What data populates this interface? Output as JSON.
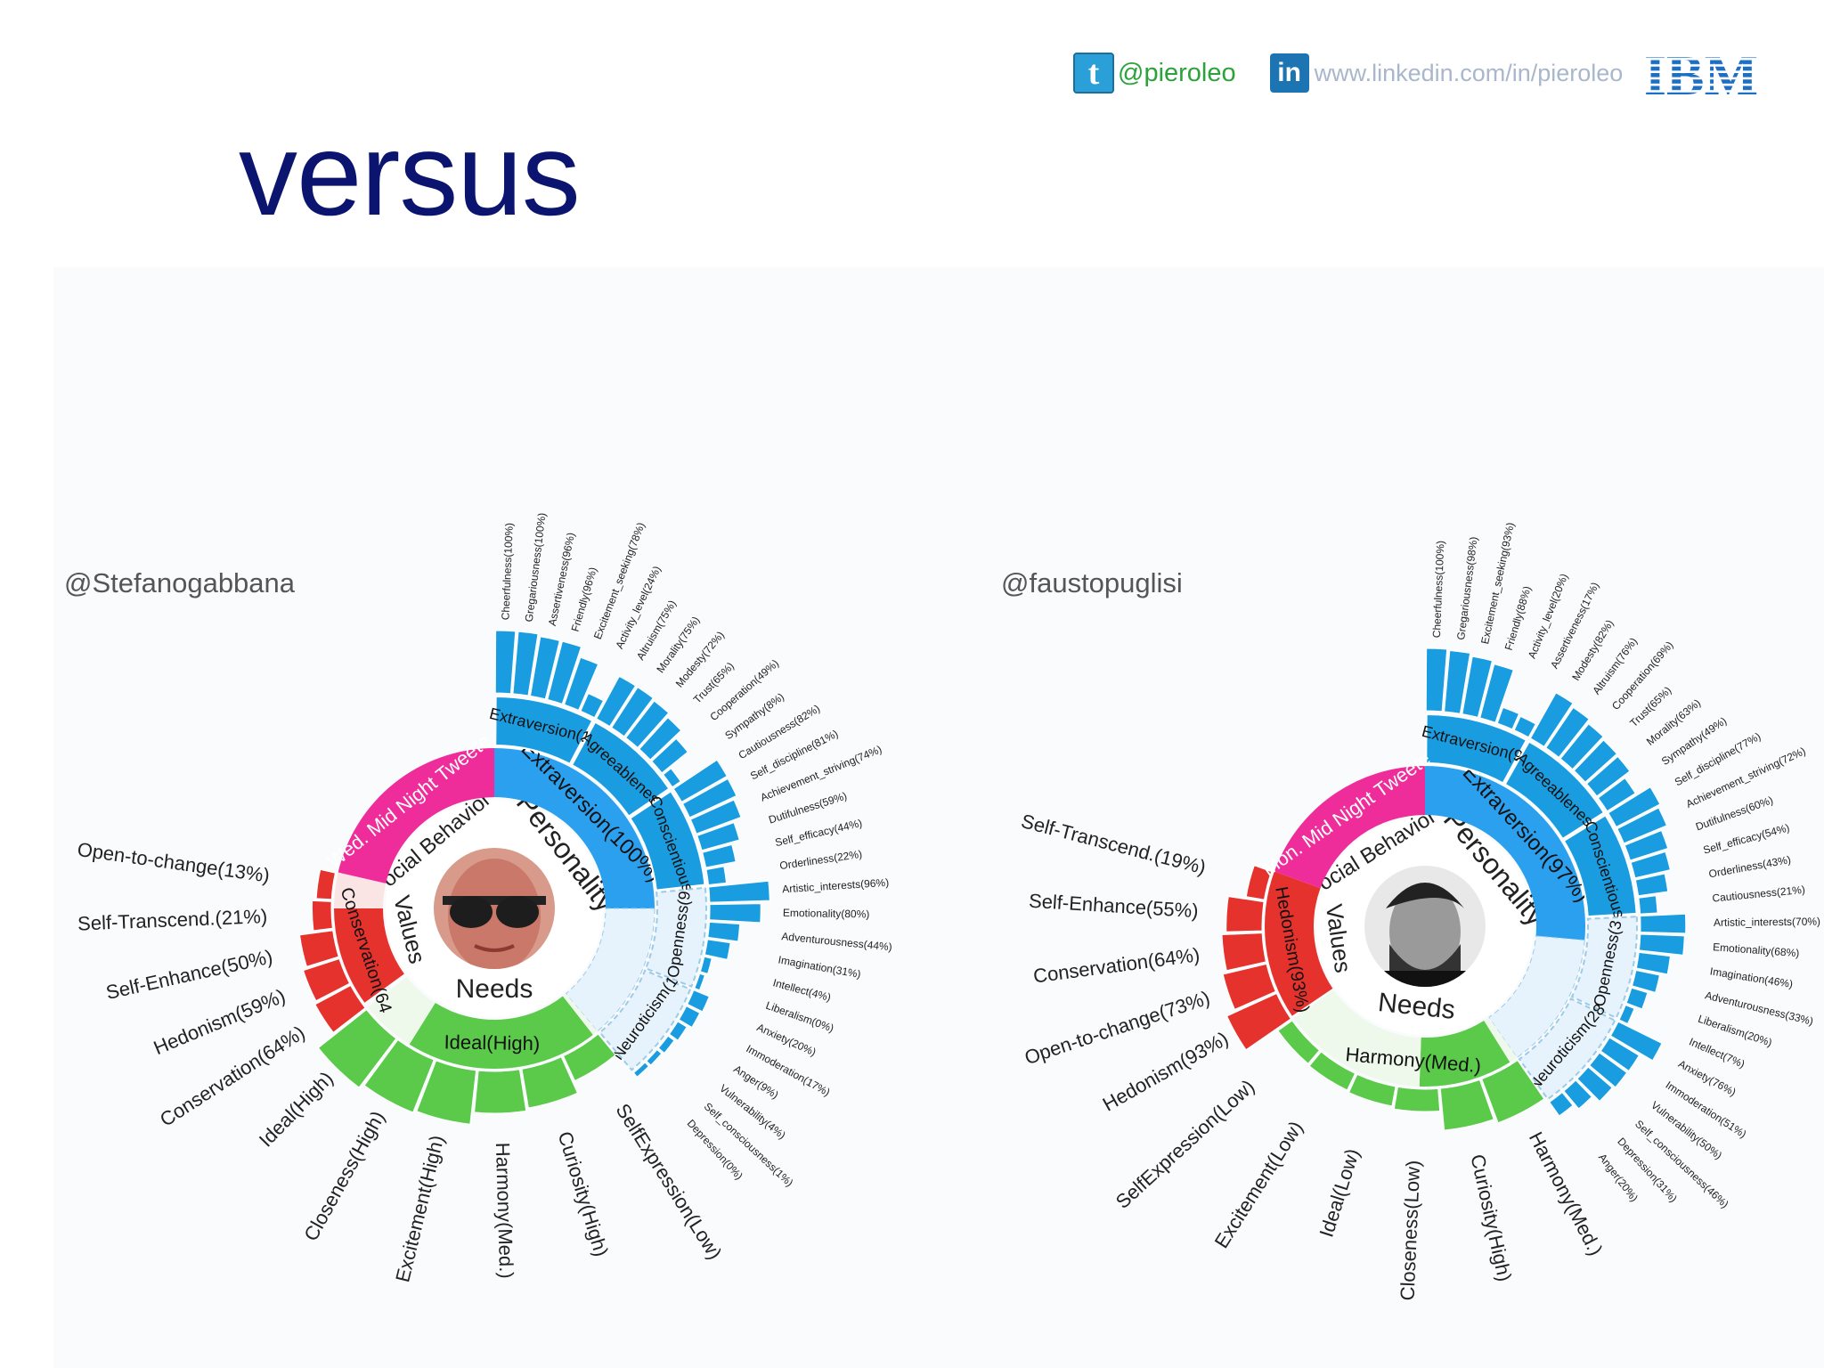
{
  "header": {
    "twitter_glyph": "t",
    "twitter_handle": "@pieroleo",
    "linkedin_glyph": "in",
    "linkedin_url": "www.linkedin.com/in/pieroleo",
    "ibm_logo_text": "IBM"
  },
  "title": "versus",
  "colors": {
    "personality": "#1a9de0",
    "personality_inner": "#2aa0ef",
    "personality_light": "#e6f3fc",
    "values": "#e5322d",
    "values_light": "#fbe5e4",
    "needs": "#5bca4a",
    "needs_light": "#eef9ec",
    "social": "#ee2d9a",
    "title": "#0b1570"
  },
  "chart_data": [
    {
      "type": "sunburst",
      "handle": "@Stefanogabbana",
      "avatar": "person-with-aviator-sunglasses",
      "center_labels": {
        "personality": "Personality",
        "values": "Values",
        "needs": "Needs",
        "social": "ocial Behavior"
      },
      "social_label": "Wed. Mid Night Tweete",
      "personality": {
        "main_label": "Extraversion(100%)",
        "groups": [
          {
            "name": "Extraversion(1",
            "shade": "dark",
            "facets": [
              [
                "Cheerfulness(100%)",
                100
              ],
              [
                "Gregariousness(100%)",
                100
              ],
              [
                "Assertiveness(96%)",
                96
              ],
              [
                "Friendly(96%)",
                96
              ],
              [
                "Excitement_seeking(78%)",
                78
              ],
              [
                "Activity_level(24%)",
                24
              ]
            ]
          },
          {
            "name": "Agreeablenes",
            "shade": "dark",
            "facets": [
              [
                "Altruism(75%)",
                75
              ],
              [
                "Morality(75%)",
                75
              ],
              [
                "Modesty(72%)",
                72
              ],
              [
                "Trust(65%)",
                65
              ],
              [
                "Cooperation(49%)",
                49
              ],
              [
                "Sympathy(8%)",
                8
              ]
            ]
          },
          {
            "name": "Conscientious",
            "shade": "dark",
            "facets": [
              [
                "Cautiousness(82%)",
                82
              ],
              [
                "Self_discipline(81%)",
                81
              ],
              [
                "Achievement_striving(74%)",
                74
              ],
              [
                "Dutifulness(59%)",
                59
              ],
              [
                "Self_efficacy(44%)",
                44
              ],
              [
                "Orderliness(22%)",
                22
              ]
            ]
          },
          {
            "name": "Openness(9",
            "shade": "light",
            "facets": [
              [
                "Artistic_interests(96%)",
                96
              ],
              [
                "Emotionality(80%)",
                80
              ],
              [
                "Adventurousness(44%)",
                44
              ],
              [
                "Imagination(31%)",
                31
              ],
              [
                "Intellect(4%)",
                4
              ],
              [
                "Liberalism(0%)",
                0
              ]
            ]
          },
          {
            "name": "Neuroticism(1",
            "shade": "light",
            "facets": [
              [
                "Anxiety(20%)",
                20
              ],
              [
                "Immoderation(17%)",
                17
              ],
              [
                "Anger(9%)",
                9
              ],
              [
                "Vulnerability(4%)",
                4
              ],
              [
                "Self_consciousness(1%)",
                1
              ],
              [
                "Depression(0%)",
                0
              ]
            ]
          }
        ]
      },
      "needs": {
        "main_label": "Ideal(High)",
        "items": [
          [
            "Ideal(High)",
            100
          ],
          [
            "Closeness(High)",
            90
          ],
          [
            "Excitement(High)",
            85
          ],
          [
            "Harmony(Med.)",
            60
          ],
          [
            "Curiosity(High)",
            55
          ],
          [
            "SelfExpression(Low)",
            30
          ]
        ]
      },
      "values": {
        "main_label": "Conservation(64",
        "items": [
          [
            "Conservation(64%)",
            64
          ],
          [
            "Hedonism(59%)",
            59
          ],
          [
            "Self-Enhance(50%)",
            50
          ],
          [
            "Self-Transcend.(21%)",
            21
          ],
          [
            "Open-to-change(13%)",
            13
          ]
        ]
      }
    },
    {
      "type": "sunburst",
      "handle": "@faustopuglisi",
      "avatar": "person-portrait-monochrome",
      "center_labels": {
        "personality": "Personality",
        "values": "Values",
        "needs": "Needs",
        "social": "ocial Behavior"
      },
      "social_label": "Mon. Mid Night Tweete",
      "personality": {
        "main_label": "Extraversion(97%)",
        "groups": [
          {
            "name": "Extraversion(9",
            "shade": "dark",
            "facets": [
              [
                "Cheerfulness(100%)",
                100
              ],
              [
                "Gregariousness(98%)",
                98
              ],
              [
                "Excitement_seeking(93%)",
                93
              ],
              [
                "Friendly(88%)",
                88
              ],
              [
                "Activity_level(20%)",
                20
              ],
              [
                "Assertiveness(17%)",
                17
              ]
            ]
          },
          {
            "name": "Agreeablenes",
            "shade": "dark",
            "facets": [
              [
                "Modesty(82%)",
                82
              ],
              [
                "Altruism(76%)",
                76
              ],
              [
                "Cooperation(69%)",
                69
              ],
              [
                "Trust(65%)",
                65
              ],
              [
                "Morality(63%)",
                63
              ],
              [
                "Sympathy(49%)",
                49
              ]
            ]
          },
          {
            "name": "Conscientious",
            "shade": "dark",
            "facets": [
              [
                "Self_discipline(77%)",
                77
              ],
              [
                "Achievement_striving(72%)",
                72
              ],
              [
                "Dutifulness(60%)",
                60
              ],
              [
                "Self_efficacy(54%)",
                54
              ],
              [
                "Orderliness(43%)",
                43
              ],
              [
                "Cautiousness(21%)",
                21
              ]
            ]
          },
          {
            "name": "Openness(3",
            "shade": "light",
            "facets": [
              [
                "Artistic_interests(70%)",
                70
              ],
              [
                "Emotionality(68%)",
                68
              ],
              [
                "Imagination(46%)",
                46
              ],
              [
                "Adventurousness(33%)",
                33
              ],
              [
                "Liberalism(20%)",
                20
              ],
              [
                "Intellect(7%)",
                7
              ]
            ]
          },
          {
            "name": "Neuroticism(28",
            "shade": "light",
            "facets": [
              [
                "Anxiety(76%)",
                76
              ],
              [
                "Immoderation(51%)",
                51
              ],
              [
                "Vulnerability(50%)",
                50
              ],
              [
                "Self_consciousness(46%)",
                46
              ],
              [
                "Depression(31%)",
                31
              ],
              [
                "Anger(20%)",
                20
              ]
            ]
          }
        ]
      },
      "needs": {
        "main_label": "Harmony(Med.)",
        "items": [
          [
            "Harmony(Med.)",
            70
          ],
          [
            "Curiosity(High)",
            60
          ],
          [
            "Closeness(Low)",
            20
          ],
          [
            "Ideal(Low)",
            15
          ],
          [
            "Excitement(Low)",
            12
          ],
          [
            "SelfExpression(Low)",
            10
          ]
        ]
      },
      "values": {
        "main_label": "Hedonism(93%)",
        "items": [
          [
            "Hedonism(93%)",
            93
          ],
          [
            "Open-to-change(73%)",
            73
          ],
          [
            "Conservation(64%)",
            64
          ],
          [
            "Self-Enhance(55%)",
            55
          ],
          [
            "Self-Transcend.(19%)",
            19
          ]
        ]
      }
    }
  ]
}
